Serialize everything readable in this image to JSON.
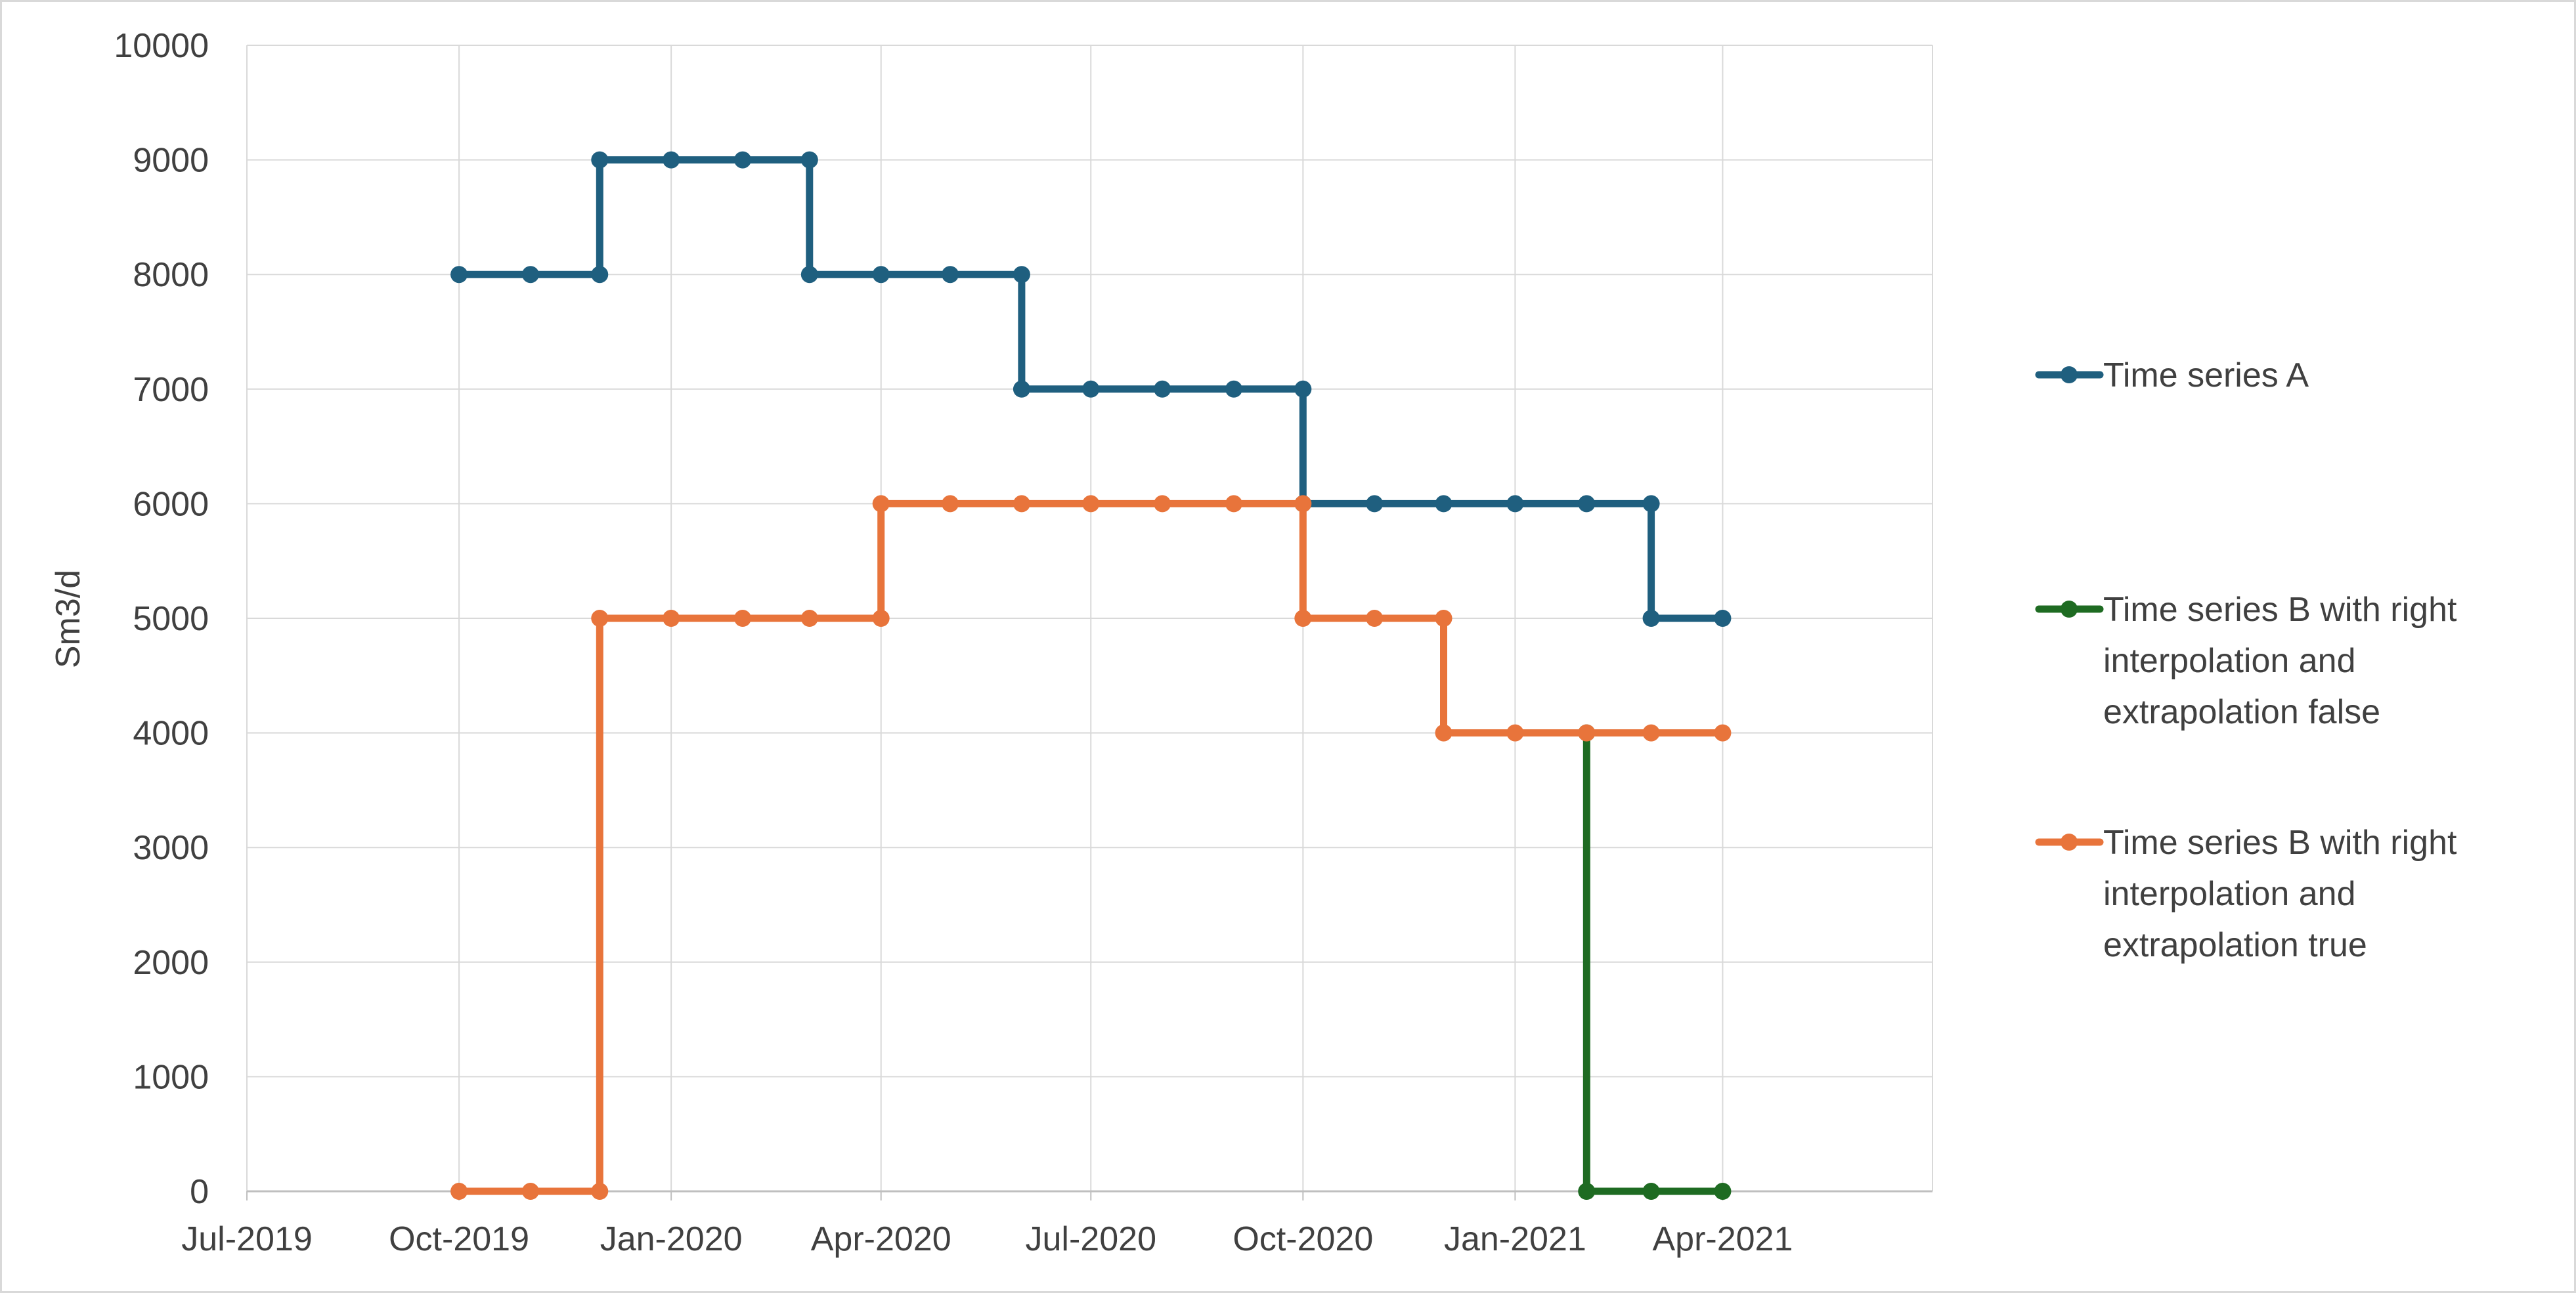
{
  "chart_data": {
    "type": "line",
    "title": "",
    "xlabel": "",
    "ylabel": "Sm3/d",
    "ylim": [
      0,
      10000
    ],
    "yticks": [
      0,
      1000,
      2000,
      3000,
      4000,
      5000,
      6000,
      7000,
      8000,
      9000,
      10000
    ],
    "xlim": [
      "2019-07-01",
      "2021-07-01"
    ],
    "xticks": [
      {
        "date": "2019-07-01",
        "label": "Jul-2019"
      },
      {
        "date": "2019-10-01",
        "label": "Oct-2019"
      },
      {
        "date": "2020-01-01",
        "label": "Jan-2020"
      },
      {
        "date": "2020-04-01",
        "label": "Apr-2020"
      },
      {
        "date": "2020-07-01",
        "label": "Jul-2020"
      },
      {
        "date": "2020-10-01",
        "label": "Oct-2020"
      },
      {
        "date": "2021-01-01",
        "label": "Jan-2021"
      },
      {
        "date": "2021-04-01",
        "label": "Apr-2021"
      }
    ],
    "grid": true,
    "legend_position": "right",
    "step": true,
    "series": [
      {
        "name": "Time series A",
        "color": "#1f5f7f",
        "points": [
          {
            "x": "2019-10-01",
            "y": 8000
          },
          {
            "x": "2019-11-01",
            "y": 8000
          },
          {
            "x": "2019-12-01",
            "y": 8000
          },
          {
            "x": "2019-12-01",
            "y": 9000
          },
          {
            "x": "2020-01-01",
            "y": 9000
          },
          {
            "x": "2020-02-01",
            "y": 9000
          },
          {
            "x": "2020-03-01",
            "y": 9000
          },
          {
            "x": "2020-03-01",
            "y": 8000
          },
          {
            "x": "2020-04-01",
            "y": 8000
          },
          {
            "x": "2020-05-01",
            "y": 8000
          },
          {
            "x": "2020-06-01",
            "y": 8000
          },
          {
            "x": "2020-06-01",
            "y": 7000
          },
          {
            "x": "2020-07-01",
            "y": 7000
          },
          {
            "x": "2020-08-01",
            "y": 7000
          },
          {
            "x": "2020-09-01",
            "y": 7000
          },
          {
            "x": "2020-10-01",
            "y": 7000
          },
          {
            "x": "2020-10-01",
            "y": 6000
          },
          {
            "x": "2020-11-01",
            "y": 6000
          },
          {
            "x": "2020-12-01",
            "y": 6000
          },
          {
            "x": "2021-01-01",
            "y": 6000
          },
          {
            "x": "2021-02-01",
            "y": 6000
          },
          {
            "x": "2021-03-01",
            "y": 6000
          },
          {
            "x": "2021-03-01",
            "y": 5000
          },
          {
            "x": "2021-04-01",
            "y": 5000
          }
        ]
      },
      {
        "name": "Time series B with right interpolation and extrapolation false",
        "color": "#1e6b22",
        "points": [
          {
            "x": "2021-02-01",
            "y": 4000
          },
          {
            "x": "2021-02-01",
            "y": 0
          },
          {
            "x": "2021-03-01",
            "y": 0
          },
          {
            "x": "2021-04-01",
            "y": 0
          }
        ]
      },
      {
        "name": "Time series B with right interpolation and extrapolation true",
        "color": "#e8743b",
        "points": [
          {
            "x": "2019-10-01",
            "y": 0
          },
          {
            "x": "2019-11-01",
            "y": 0
          },
          {
            "x": "2019-12-01",
            "y": 0
          },
          {
            "x": "2019-12-01",
            "y": 5000
          },
          {
            "x": "2020-01-01",
            "y": 5000
          },
          {
            "x": "2020-02-01",
            "y": 5000
          },
          {
            "x": "2020-03-01",
            "y": 5000
          },
          {
            "x": "2020-04-01",
            "y": 5000
          },
          {
            "x": "2020-04-01",
            "y": 6000
          },
          {
            "x": "2020-05-01",
            "y": 6000
          },
          {
            "x": "2020-06-01",
            "y": 6000
          },
          {
            "x": "2020-07-01",
            "y": 6000
          },
          {
            "x": "2020-08-01",
            "y": 6000
          },
          {
            "x": "2020-09-01",
            "y": 6000
          },
          {
            "x": "2020-10-01",
            "y": 6000
          },
          {
            "x": "2020-10-01",
            "y": 5000
          },
          {
            "x": "2020-11-01",
            "y": 5000
          },
          {
            "x": "2020-12-01",
            "y": 5000
          },
          {
            "x": "2020-12-01",
            "y": 4000
          },
          {
            "x": "2021-01-01",
            "y": 4000
          },
          {
            "x": "2021-02-01",
            "y": 4000
          },
          {
            "x": "2021-03-01",
            "y": 4000
          },
          {
            "x": "2021-04-01",
            "y": 4000
          }
        ]
      }
    ],
    "legend": [
      {
        "lines": [
          "Time series A"
        ]
      },
      {
        "lines": [
          "Time series B with right",
          "interpolation and",
          "extrapolation false"
        ]
      },
      {
        "lines": [
          "Time series B with right",
          "interpolation and",
          "extrapolation true"
        ]
      }
    ],
    "colors": {
      "grid": "#d9d9d9",
      "axis": "#bfbfbf",
      "text": "#404040"
    }
  }
}
